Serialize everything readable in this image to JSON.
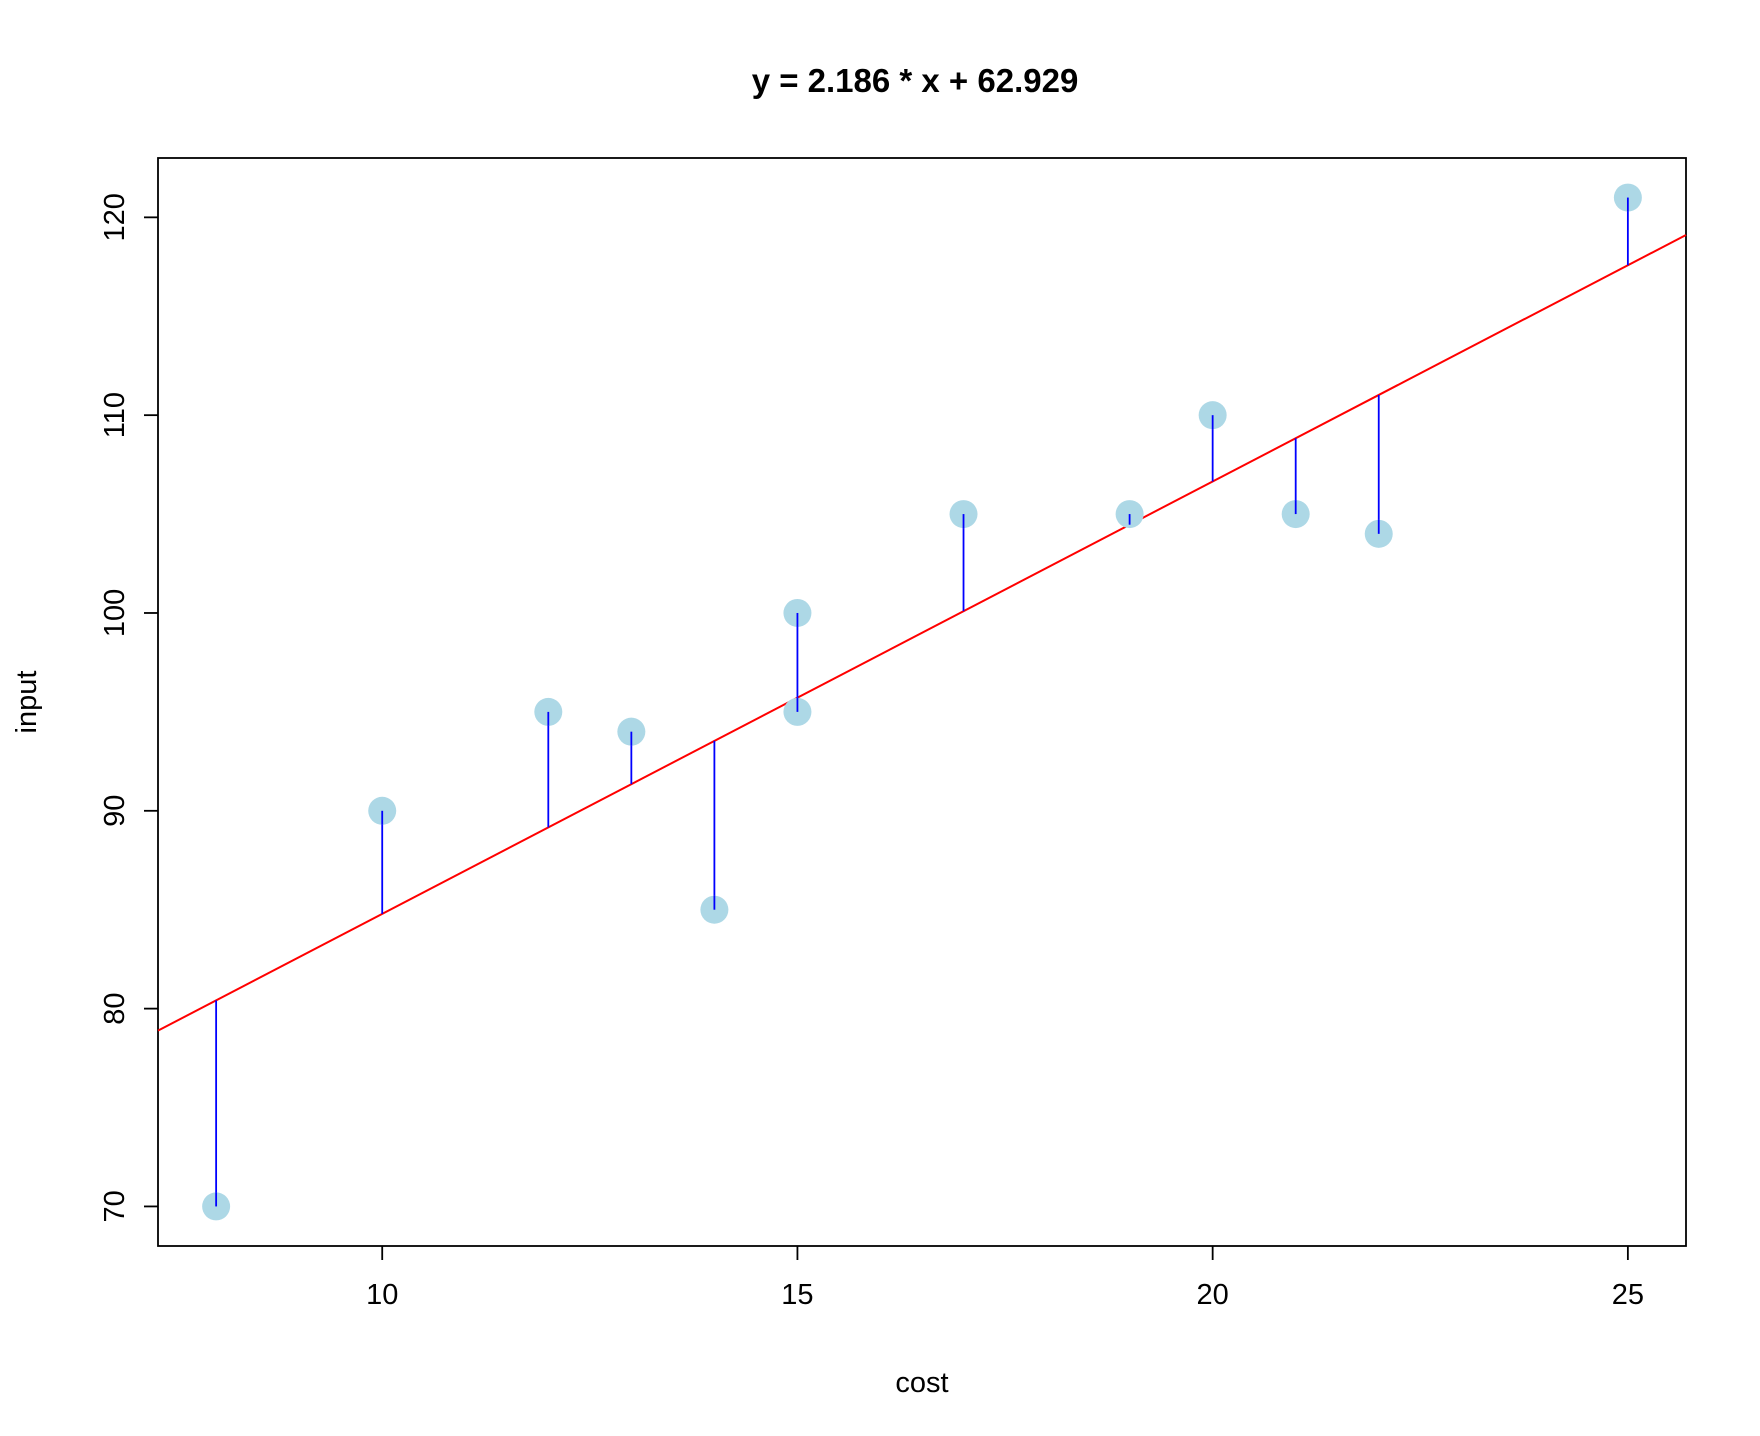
{
  "chart_data": {
    "type": "scatter",
    "title": "y = 2.186 * x + 62.929",
    "xlabel": "cost",
    "ylabel": "input",
    "xlim": [
      7.3,
      25.7
    ],
    "ylim": [
      68.0,
      123.0
    ],
    "x_ticks": [
      10,
      15,
      20,
      25
    ],
    "y_ticks": [
      70,
      80,
      90,
      100,
      110,
      120
    ],
    "grid": false,
    "legend": "none",
    "points": [
      {
        "x": 8,
        "y": 70
      },
      {
        "x": 10,
        "y": 90
      },
      {
        "x": 12,
        "y": 95
      },
      {
        "x": 13,
        "y": 94
      },
      {
        "x": 14,
        "y": 85
      },
      {
        "x": 15,
        "y": 100
      },
      {
        "x": 15,
        "y": 95
      },
      {
        "x": 17,
        "y": 105
      },
      {
        "x": 19,
        "y": 105
      },
      {
        "x": 20,
        "y": 110
      },
      {
        "x": 21,
        "y": 105
      },
      {
        "x": 22,
        "y": 104
      },
      {
        "x": 25,
        "y": 121
      }
    ],
    "regression": {
      "slope": 2.186,
      "intercept": 62.929
    },
    "colors": {
      "points": "#add8e6",
      "regression_line": "#ff0000",
      "residual_lines": "#0000ff",
      "frame": "#000000"
    }
  }
}
